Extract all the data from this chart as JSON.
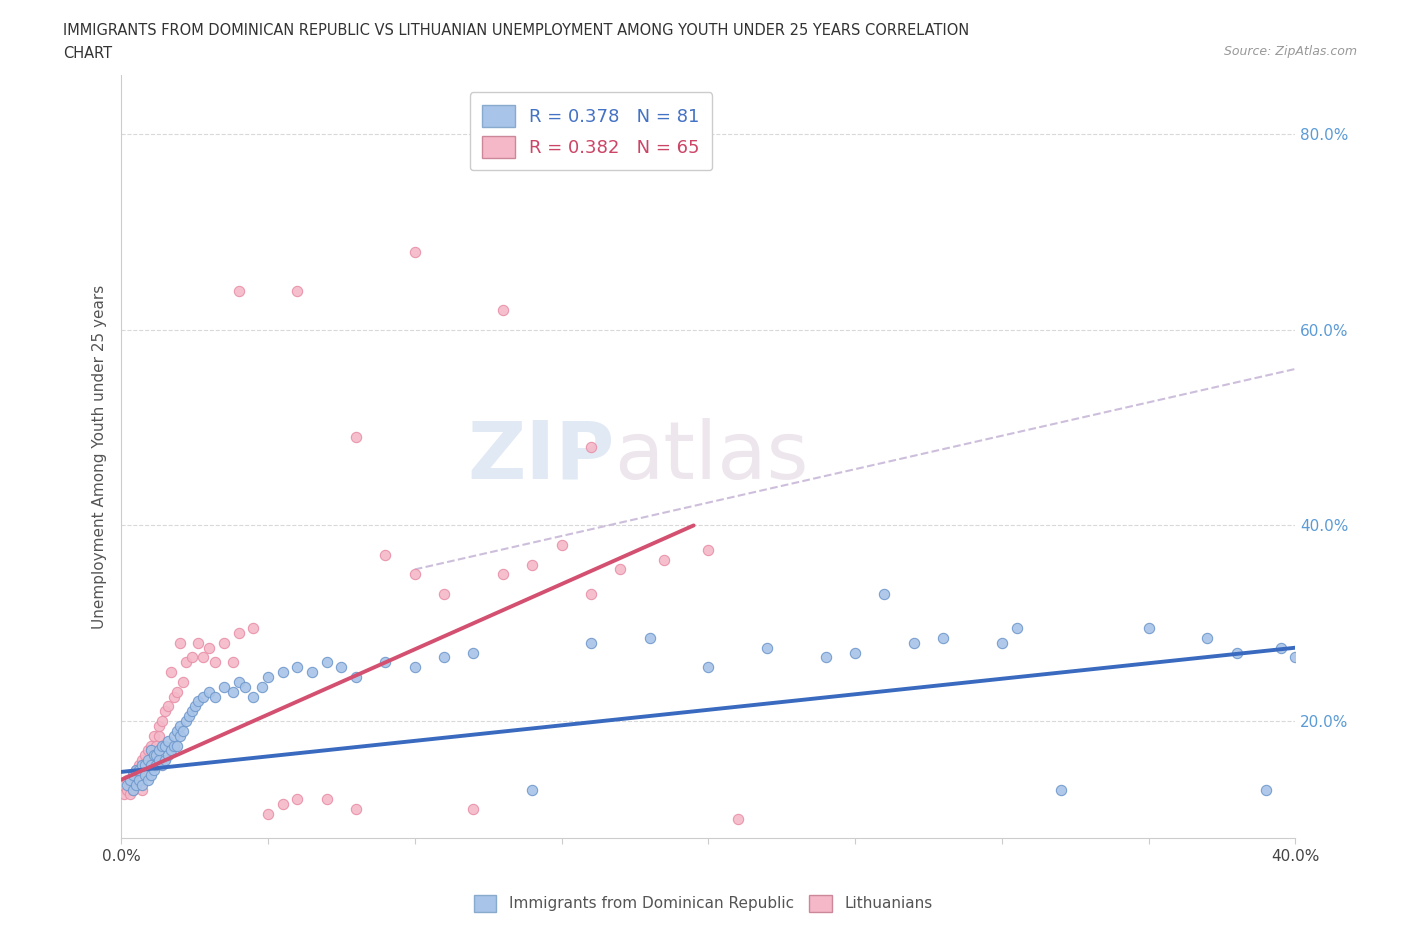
{
  "title_line1": "IMMIGRANTS FROM DOMINICAN REPUBLIC VS LITHUANIAN UNEMPLOYMENT AMONG YOUTH UNDER 25 YEARS CORRELATION",
  "title_line2": "CHART",
  "source": "Source: ZipAtlas.com",
  "ylabel": "Unemployment Among Youth under 25 years",
  "xlim": [
    0.0,
    0.4
  ],
  "ylim": [
    0.08,
    0.86
  ],
  "xticks": [
    0.0,
    0.05,
    0.1,
    0.15,
    0.2,
    0.25,
    0.3,
    0.35,
    0.4
  ],
  "yticks": [
    0.2,
    0.4,
    0.6,
    0.8
  ],
  "ytick_labels": [
    "20.0%",
    "40.0%",
    "60.0%",
    "80.0%"
  ],
  "blue_R": "0.378",
  "blue_N": "81",
  "pink_R": "0.382",
  "pink_N": "65",
  "blue_color": "#a8c4e8",
  "pink_color": "#f4b8c8",
  "blue_line_color": "#3a6abf",
  "pink_line_color": "#d45070",
  "watermark_zip": "ZIP",
  "watermark_atlas": "atlas",
  "legend_label_blue": "Immigrants from Dominican Republic",
  "legend_label_pink": "Lithuanians",
  "blue_scatter_x": [
    0.002,
    0.003,
    0.004,
    0.004,
    0.005,
    0.005,
    0.006,
    0.006,
    0.007,
    0.007,
    0.008,
    0.008,
    0.009,
    0.009,
    0.01,
    0.01,
    0.01,
    0.011,
    0.011,
    0.012,
    0.012,
    0.013,
    0.013,
    0.014,
    0.014,
    0.015,
    0.015,
    0.016,
    0.016,
    0.017,
    0.018,
    0.018,
    0.019,
    0.019,
    0.02,
    0.02,
    0.021,
    0.022,
    0.023,
    0.024,
    0.025,
    0.026,
    0.028,
    0.03,
    0.032,
    0.035,
    0.038,
    0.04,
    0.042,
    0.045,
    0.048,
    0.05,
    0.055,
    0.06,
    0.065,
    0.07,
    0.075,
    0.08,
    0.09,
    0.1,
    0.11,
    0.12,
    0.14,
    0.16,
    0.18,
    0.2,
    0.22,
    0.24,
    0.26,
    0.28,
    0.3,
    0.32,
    0.35,
    0.37,
    0.38,
    0.39,
    0.395,
    0.4,
    0.305,
    0.27,
    0.25
  ],
  "blue_scatter_y": [
    0.135,
    0.14,
    0.13,
    0.145,
    0.135,
    0.15,
    0.14,
    0.15,
    0.135,
    0.155,
    0.145,
    0.155,
    0.14,
    0.16,
    0.145,
    0.155,
    0.17,
    0.15,
    0.165,
    0.155,
    0.165,
    0.16,
    0.17,
    0.155,
    0.175,
    0.16,
    0.175,
    0.165,
    0.18,
    0.17,
    0.175,
    0.185,
    0.175,
    0.19,
    0.185,
    0.195,
    0.19,
    0.2,
    0.205,
    0.21,
    0.215,
    0.22,
    0.225,
    0.23,
    0.225,
    0.235,
    0.23,
    0.24,
    0.235,
    0.225,
    0.235,
    0.245,
    0.25,
    0.255,
    0.25,
    0.26,
    0.255,
    0.245,
    0.26,
    0.255,
    0.265,
    0.27,
    0.13,
    0.28,
    0.285,
    0.255,
    0.275,
    0.265,
    0.33,
    0.285,
    0.28,
    0.13,
    0.295,
    0.285,
    0.27,
    0.13,
    0.275,
    0.265,
    0.295,
    0.28,
    0.27
  ],
  "pink_scatter_x": [
    0.001,
    0.002,
    0.002,
    0.003,
    0.003,
    0.004,
    0.004,
    0.005,
    0.005,
    0.006,
    0.006,
    0.007,
    0.007,
    0.008,
    0.008,
    0.009,
    0.009,
    0.01,
    0.01,
    0.011,
    0.011,
    0.012,
    0.013,
    0.013,
    0.014,
    0.015,
    0.016,
    0.017,
    0.018,
    0.019,
    0.02,
    0.021,
    0.022,
    0.024,
    0.026,
    0.028,
    0.03,
    0.032,
    0.035,
    0.038,
    0.04,
    0.045,
    0.05,
    0.055,
    0.06,
    0.07,
    0.08,
    0.09,
    0.1,
    0.11,
    0.12,
    0.13,
    0.14,
    0.15,
    0.16,
    0.17,
    0.185,
    0.2,
    0.21,
    0.08,
    0.1,
    0.06,
    0.04,
    0.13,
    0.16
  ],
  "pink_scatter_y": [
    0.125,
    0.13,
    0.14,
    0.125,
    0.14,
    0.13,
    0.145,
    0.135,
    0.15,
    0.14,
    0.155,
    0.13,
    0.16,
    0.145,
    0.165,
    0.15,
    0.17,
    0.155,
    0.175,
    0.165,
    0.185,
    0.175,
    0.185,
    0.195,
    0.2,
    0.21,
    0.215,
    0.25,
    0.225,
    0.23,
    0.28,
    0.24,
    0.26,
    0.265,
    0.28,
    0.265,
    0.275,
    0.26,
    0.28,
    0.26,
    0.29,
    0.295,
    0.105,
    0.115,
    0.12,
    0.12,
    0.11,
    0.37,
    0.35,
    0.33,
    0.11,
    0.35,
    0.36,
    0.38,
    0.33,
    0.355,
    0.365,
    0.375,
    0.1,
    0.49,
    0.68,
    0.64,
    0.64,
    0.62,
    0.48
  ],
  "blue_trend_x": [
    0.0,
    0.4
  ],
  "blue_trend_y": [
    0.148,
    0.275
  ],
  "pink_trend_x": [
    0.0,
    0.195
  ],
  "pink_trend_y": [
    0.14,
    0.4
  ],
  "diag_line_x": [
    0.1,
    0.4
  ],
  "diag_line_y": [
    0.355,
    0.56
  ],
  "background_color": "#ffffff",
  "grid_color": "#d0d0d0"
}
